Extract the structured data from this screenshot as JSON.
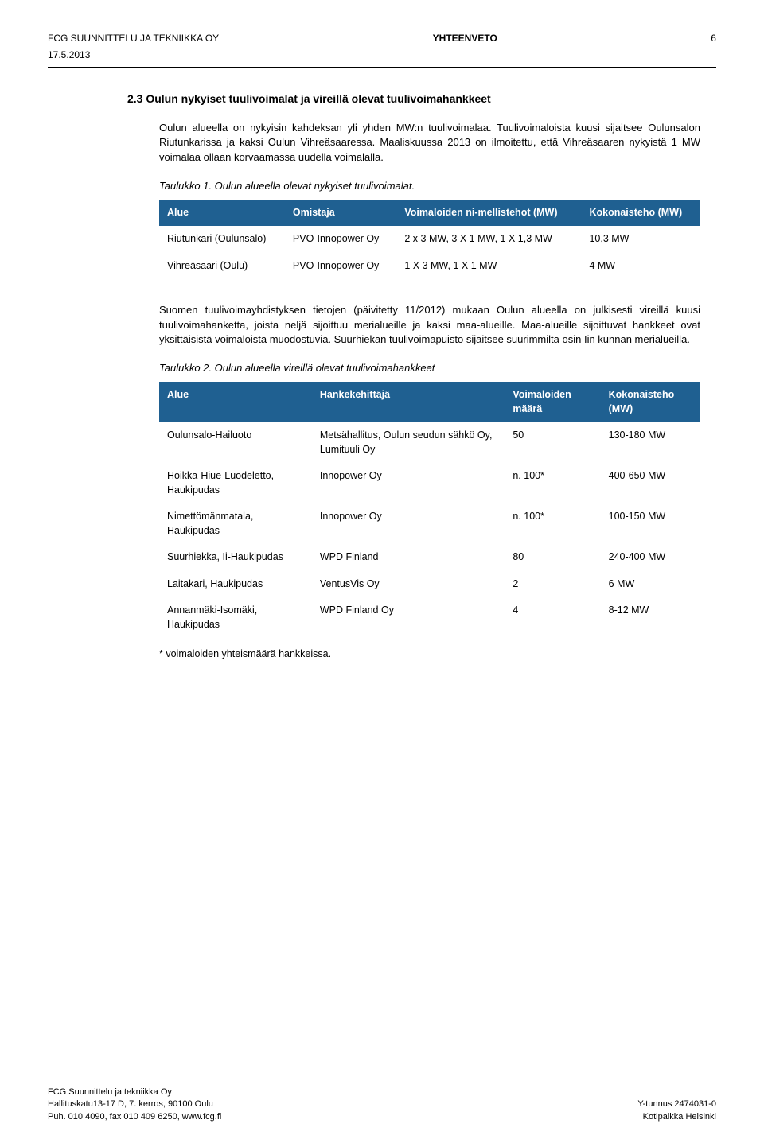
{
  "header": {
    "company": "FCG SUUNNITTELU JA TEKNIIKKA OY",
    "center": "YHTEENVETO",
    "pageno": "6",
    "date": "17.5.2013"
  },
  "section": {
    "title": "2.3 Oulun nykyiset tuulivoimalat ja vireillä olevat tuulivoimahankkeet",
    "p1": "Oulun alueella on nykyisin kahdeksan yli yhden MW:n tuulivoimalaa. Tuulivoimaloista kuusi sijaitsee Oulunsalon Riutunkarissa ja kaksi Oulun Vihreäsaaressa. Maaliskuussa 2013 on ilmoitettu, että Vihreäsaaren nykyistä 1 MW voimalaa ollaan korvaamassa uudella voimalalla.",
    "caption1": "Taulukko 1. Oulun alueella olevat nykyiset tuulivoimalat.",
    "p2": "Suomen tuulivoimayhdistyksen tietojen (päivitetty 11/2012) mukaan Oulun alueella on julkisesti vireillä kuusi tuulivoimahanketta, joista neljä sijoittuu merialueille ja kaksi maa-alueille. Maa-alueille sijoittuvat hankkeet ovat yksittäisistä voimaloista muodostuvia. Suurhiekan tuulivoimapuisto sijaitsee suurimmilta osin Iin kunnan merialueilla.",
    "caption2": "Taulukko 2. Oulun alueella vireillä olevat tuulivoimahankkeet",
    "footnote": "* voimaloiden yhteismäärä hankkeissa."
  },
  "table1": {
    "headers": [
      "Alue",
      "Omistaja",
      "Voimaloiden ni-mellistehot (MW)",
      "Kokonaisteho (MW)"
    ],
    "rows": [
      [
        "Riutunkari (Oulunsalo)",
        "PVO-Innopower Oy",
        "2 x 3 MW, 3 X 1 MW, 1 X 1,3 MW",
        "10,3 MW"
      ],
      [
        "Vihreäsaari (Oulu)",
        "PVO-Innopower Oy",
        "1 X 3 MW, 1 X 1 MW",
        "4 MW"
      ]
    ]
  },
  "table2": {
    "headers": [
      "Alue",
      "Hankekehittäjä",
      "Voimaloiden määrä",
      "Kokonaisteho (MW)"
    ],
    "rows": [
      [
        "Oulunsalo-Hailuoto",
        "Metsähallitus, Oulun seudun sähkö Oy, Lumituuli Oy",
        "50",
        "130-180 MW"
      ],
      [
        "Hoikka-Hiue-Luodeletto, Haukipudas",
        "Innopower Oy",
        "n. 100*",
        "400-650 MW"
      ],
      [
        "Nimettömänmatala, Haukipudas",
        "Innopower Oy",
        "n. 100*",
        "100-150 MW"
      ],
      [
        "Suurhiekka, Ii-Haukipudas",
        "WPD Finland",
        "80",
        "240-400 MW"
      ],
      [
        "Laitakari, Haukipudas",
        "VentusVis Oy",
        "2",
        "6 MW"
      ],
      [
        "Annanmäki-Isomäki, Haukipudas",
        "WPD Finland Oy",
        "4",
        "8-12 MW"
      ]
    ]
  },
  "footer": {
    "l1": "FCG Suunnittelu ja tekniikka Oy",
    "l2": "Hallituskatu13-17 D, 7. kerros, 90100 Oulu",
    "l3": "Puh. 010 4090, fax 010 409 6250, www.fcg.fi",
    "r2": "Y-tunnus 2474031-0",
    "r3": "Kotipaikka Helsinki"
  }
}
